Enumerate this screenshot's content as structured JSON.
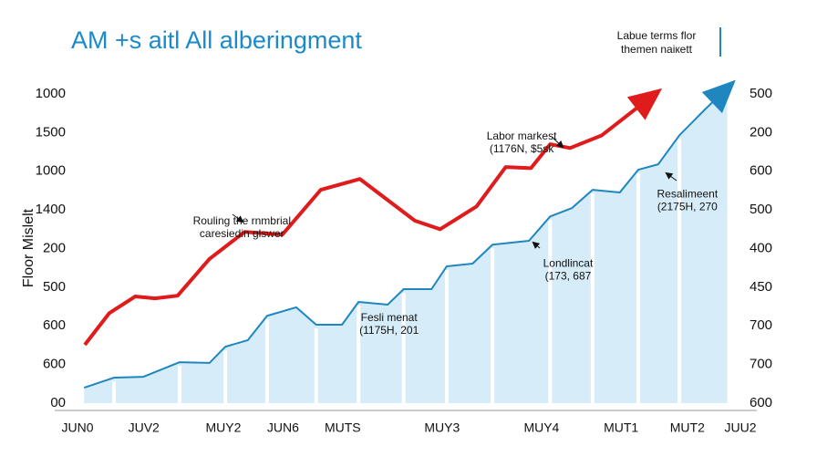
{
  "chart_data": {
    "type": "line",
    "title": "AM +s aitl All alberingment",
    "legend_text": [
      "Labue terms flor",
      "themen naiкett"
    ],
    "ylabel": "Floor Mislelt",
    "xlim": [
      0,
      100
    ],
    "xticks": [
      {
        "value": 0,
        "label": "JUN0"
      },
      {
        "value": 10,
        "label": "JUV2"
      },
      {
        "value": 22,
        "label": "MUY2"
      },
      {
        "value": 31,
        "label": "JUN6"
      },
      {
        "value": 40,
        "label": "MUTS"
      },
      {
        "value": 55,
        "label": "MUY3"
      },
      {
        "value": 70,
        "label": "MUY4"
      },
      {
        "value": 82,
        "label": "MUT1"
      },
      {
        "value": 92,
        "label": "MUT2"
      },
      {
        "value": 100,
        "label": "JUU2"
      }
    ],
    "ylim": [
      0,
      8
    ],
    "yticks": [
      {
        "value": 0,
        "label": "00"
      },
      {
        "value": 1,
        "label": "600"
      },
      {
        "value": 2,
        "label": "600"
      },
      {
        "value": 3,
        "label": "500"
      },
      {
        "value": 4,
        "label": "200"
      },
      {
        "value": 5,
        "label": "1400"
      },
      {
        "value": 6,
        "label": "1000"
      },
      {
        "value": 7,
        "label": "1500"
      },
      {
        "value": 8,
        "label": "1000"
      }
    ],
    "y2lim": [
      0,
      8
    ],
    "y2ticks": [
      {
        "value": 0,
        "label": "600"
      },
      {
        "value": 1,
        "label": "700"
      },
      {
        "value": 2,
        "label": "700"
      },
      {
        "value": 3,
        "label": "450"
      },
      {
        "value": 4,
        "label": "400"
      },
      {
        "value": 5,
        "label": "500"
      },
      {
        "value": 6,
        "label": "600"
      },
      {
        "value": 7,
        "label": "200"
      },
      {
        "value": 8,
        "label": "500"
      }
    ],
    "series": [
      {
        "color": "#e01b1b",
        "x": [
          1.1,
          4.8,
          8.7,
          11.7,
          15.1,
          19.9,
          25.2,
          30.9,
          36.7,
          42.6,
          50.9,
          54.7,
          60.2,
          64.6,
          68.4,
          71.3,
          74.3,
          79.1,
          87.1
        ],
        "values": [
          1.51,
          2.33,
          2.76,
          2.71,
          2.78,
          3.73,
          4.43,
          4.36,
          5.52,
          5.8,
          4.72,
          4.5,
          5.09,
          6.11,
          6.08,
          6.7,
          6.6,
          6.93,
          8.0
        ]
      },
      {
        "color": "#1f86c0",
        "axis": "y2",
        "x": [
          1.0,
          5.5,
          9.9,
          15.4,
          19.9,
          22.3,
          25.7,
          28.6,
          33.0,
          36.0,
          39.9,
          42.4,
          46.8,
          49.2,
          53.4,
          55.7,
          59.6,
          62.6,
          68.1,
          71.3,
          74.6,
          77.7,
          81.8,
          84.6,
          87.6,
          90.8,
          94.6,
          98.3
        ],
        "values": [
          0.4,
          0.66,
          0.68,
          1.06,
          1.04,
          1.46,
          1.63,
          2.26,
          2.48,
          2.03,
          2.03,
          2.62,
          2.55,
          2.95,
          2.95,
          3.54,
          3.61,
          4.1,
          4.2,
          4.83,
          5.05,
          5.52,
          5.45,
          6.04,
          6.18,
          6.93,
          7.59,
          8.2
        ]
      }
    ],
    "annotations": [
      {
        "lines": [
          "Labor markest",
          "(1176N, $5sk"
        ],
        "x": 67,
        "y": 6.9
      },
      {
        "lines": [
          "Rouling the rnmbrial",
          "caresiedin glswer"
        ],
        "x": 24.8,
        "y": 4.7
      },
      {
        "lines": [
          "Fesli menat",
          "(1175H, 201"
        ],
        "x": 47,
        "y": 2.2
      },
      {
        "lines": [
          "Londlincat",
          "(173, 687"
        ],
        "x": 74,
        "y": 3.6
      },
      {
        "lines": [
          "Resalimeent",
          "(2175H, 270"
        ],
        "x": 92,
        "y": 5.4
      }
    ]
  }
}
